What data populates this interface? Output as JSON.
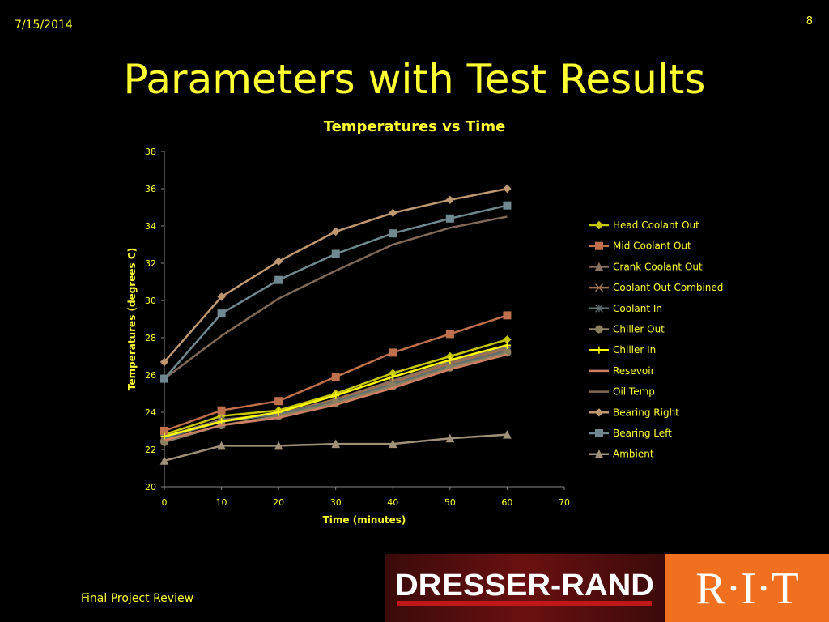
{
  "slide": {
    "date": "7/15/2014",
    "page": "8",
    "title": "Parameters with Test Results",
    "footer": "Final Project Review",
    "logos": {
      "dresser": "DRESSER-RAND",
      "rit": "R·I·T"
    }
  },
  "chart_data": {
    "type": "line",
    "title": "Temperatures vs Time",
    "x_label": "Time (minutes)",
    "y_label": "Temperatures (degrees C)",
    "x": [
      0,
      10,
      20,
      30,
      40,
      50,
      60
    ],
    "xlim": [
      0,
      70
    ],
    "xticks": [
      0,
      10,
      20,
      30,
      40,
      50,
      60,
      70
    ],
    "ylim": [
      20,
      38
    ],
    "yticks": [
      20,
      22,
      24,
      26,
      28,
      30,
      32,
      34,
      36,
      38
    ],
    "grid": false,
    "legend": "right",
    "series": [
      {
        "name": "Head Coolant Out",
        "color": "#c8c800",
        "marker": "diamond",
        "values": [
          22.8,
          23.8,
          24.1,
          25.0,
          26.1,
          27.0,
          27.9
        ]
      },
      {
        "name": "Mid Coolant Out",
        "color": "#c0704a",
        "marker": "square",
        "values": [
          23.0,
          24.1,
          24.6,
          25.9,
          27.2,
          28.2,
          29.2
        ]
      },
      {
        "name": "Crank Coolant Out",
        "color": "#8a7060",
        "marker": "triangle",
        "values": [
          22.7,
          23.6,
          23.9,
          24.7,
          25.7,
          26.7,
          27.5
        ]
      },
      {
        "name": "Coolant Out Combined",
        "color": "#a07050",
        "marker": "x",
        "values": [
          22.6,
          23.5,
          23.9,
          24.7,
          25.6,
          26.6,
          27.4
        ]
      },
      {
        "name": "Coolant In",
        "color": "#607070",
        "marker": "star",
        "values": [
          22.6,
          23.5,
          23.9,
          24.6,
          25.5,
          26.5,
          27.3
        ]
      },
      {
        "name": "Chiller Out",
        "color": "#8a8060",
        "marker": "circle",
        "values": [
          22.4,
          23.3,
          23.8,
          24.5,
          25.4,
          26.4,
          27.2
        ]
      },
      {
        "name": "Chiller In",
        "color": "#ffff00",
        "marker": "plus",
        "values": [
          22.7,
          23.5,
          24.0,
          24.9,
          25.9,
          26.8,
          27.6
        ]
      },
      {
        "name": "Resevoir",
        "color": "#d08060",
        "marker": "none",
        "values": [
          22.5,
          23.3,
          23.7,
          24.4,
          25.3,
          26.3,
          27.1
        ]
      },
      {
        "name": "Oil Temp",
        "color": "#806858",
        "marker": "none",
        "values": [
          25.8,
          28.1,
          30.1,
          31.6,
          33.0,
          33.9,
          34.5
        ]
      },
      {
        "name": "Bearing Right",
        "color": "#c09870",
        "marker": "diamond",
        "values": [
          26.7,
          30.2,
          32.1,
          33.7,
          34.7,
          35.4,
          36.0
        ]
      },
      {
        "name": "Bearing Left",
        "color": "#708890",
        "marker": "square",
        "values": [
          25.8,
          29.3,
          31.1,
          32.5,
          33.6,
          34.4,
          35.1
        ]
      },
      {
        "name": "Ambient",
        "color": "#a09078",
        "marker": "triangle",
        "values": [
          21.4,
          22.2,
          22.2,
          22.3,
          22.3,
          22.6,
          22.8
        ]
      }
    ]
  }
}
